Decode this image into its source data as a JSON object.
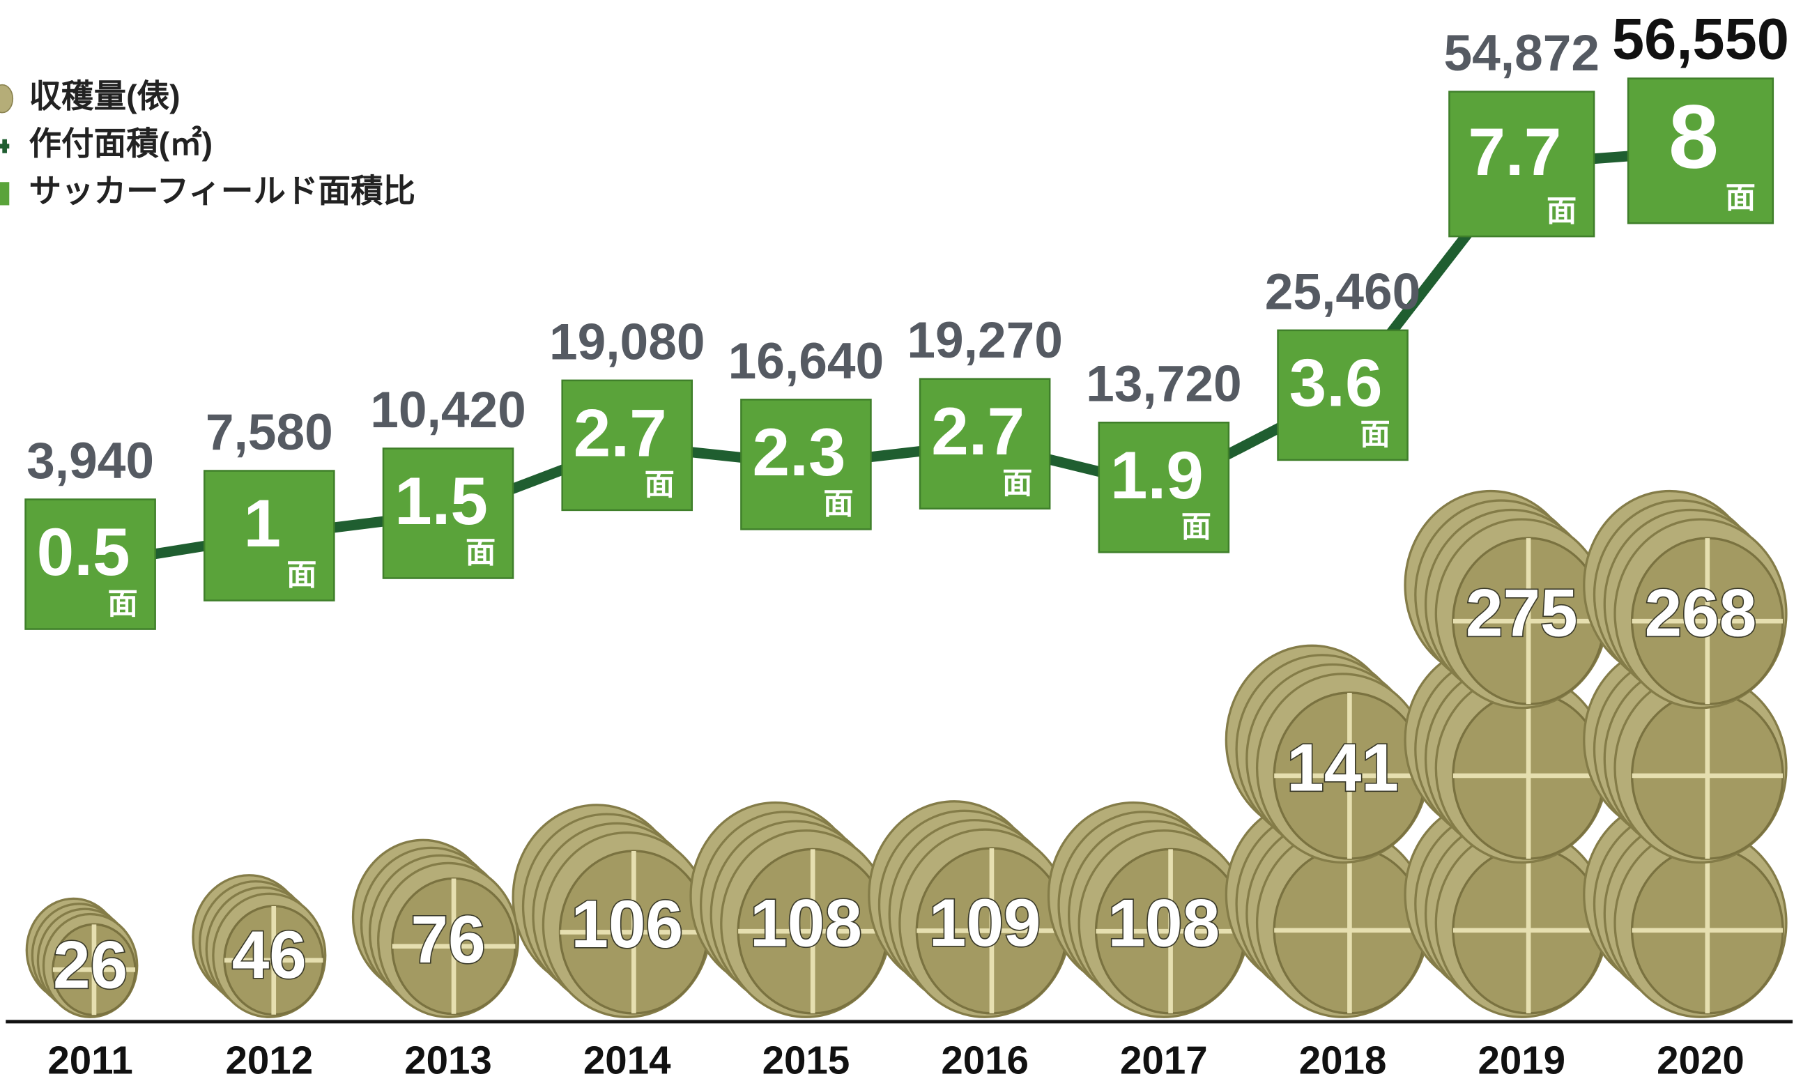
{
  "chart_data": {
    "type": "bale-line",
    "legend": [
      "収穫量(俵)",
      "作付面積(㎡)",
      "サッカーフィールド面積比"
    ],
    "categories": [
      "2011",
      "2012",
      "2013",
      "2014",
      "2015",
      "2016",
      "2017",
      "2018",
      "2019",
      "2020"
    ],
    "unit": "面",
    "series": [
      {
        "name": "収穫量(俵)",
        "color": "#b5ad78",
        "values": [
          26,
          46,
          76,
          106,
          108,
          109,
          108,
          141,
          275,
          268
        ]
      },
      {
        "name": "作付面積(㎡)",
        "color": "#1f5e30",
        "values": [
          3940,
          7580,
          10420,
          19080,
          16640,
          19270,
          13720,
          25460,
          54872,
          56550
        ],
        "value_labels": [
          "3,940",
          "7,580",
          "10,420",
          "19,080",
          "16,640",
          "19,270",
          "13,720",
          "25,460",
          "54,872",
          "56,550"
        ]
      },
      {
        "name": "サッカーフィールド面積比",
        "color": "#5aa33a",
        "values": [
          0.5,
          1,
          1.5,
          2.7,
          2.3,
          2.7,
          1.9,
          3.6,
          7.7,
          8
        ]
      }
    ]
  }
}
